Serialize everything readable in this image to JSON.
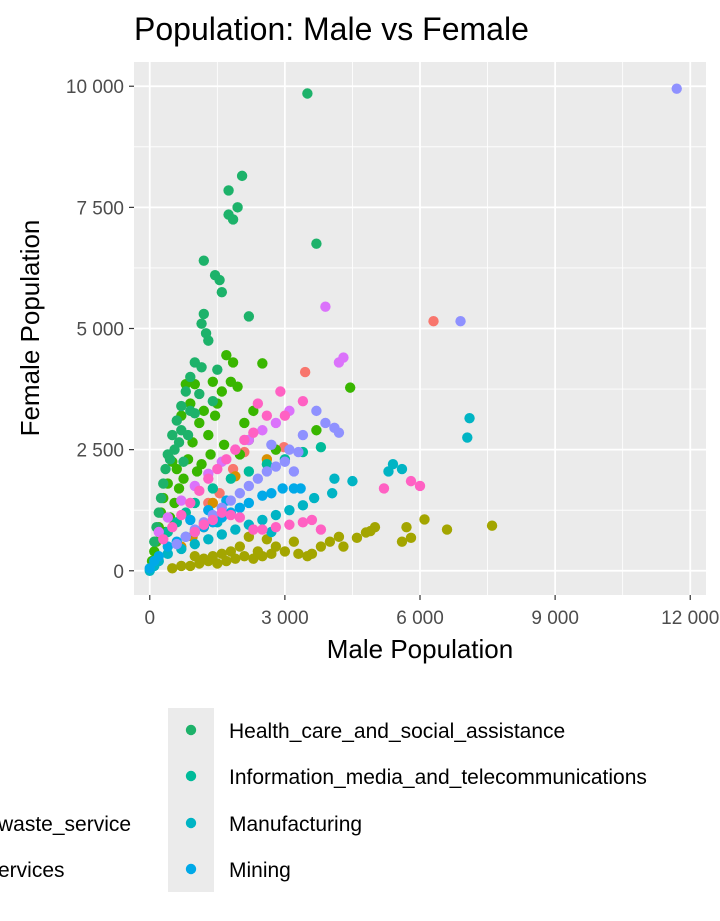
{
  "chart_data": {
    "type": "scatter",
    "title": "Population: Male vs Female",
    "xlabel": "Male Population",
    "ylabel": "Female Population",
    "xlim": [
      -350,
      12350
    ],
    "ylim": [
      -500,
      10500
    ],
    "x_ticks": [
      0,
      3000,
      6000,
      9000,
      12000
    ],
    "x_tick_labels": [
      "0",
      "3 000",
      "6 000",
      "9 000",
      "12 000"
    ],
    "y_ticks": [
      0,
      2500,
      5000,
      7500,
      10000
    ],
    "y_tick_labels": [
      "0",
      "2 500",
      "5 000",
      "7 500",
      "10 000"
    ],
    "grid": true,
    "legend": {
      "placement": "bottom",
      "cut_off_labels": [
        "waste_service",
        "ervices"
      ],
      "entries": [
        {
          "label": "Health_care_and_social_assistance",
          "color": "#1DB26A"
        },
        {
          "label": "Information_media_and_telecommunications",
          "color": "#00BB9A"
        },
        {
          "label": "Manufacturing",
          "color": "#00B4C4"
        },
        {
          "label": "Mining",
          "color": "#00A9E8"
        }
      ]
    },
    "series": [
      {
        "color": "#F8766D",
        "points": [
          [
            6300,
            5150
          ],
          [
            3450,
            4100
          ],
          [
            2980,
            2550
          ],
          [
            1850,
            2100
          ],
          [
            1550,
            1600
          ],
          [
            1300,
            1400
          ],
          [
            2100,
            2450
          ]
        ]
      },
      {
        "color": "#D89000",
        "points": [
          [
            2600,
            2300
          ],
          [
            1900,
            1950
          ],
          [
            1400,
            1400
          ],
          [
            1200,
            900
          ],
          [
            950,
            700
          ],
          [
            700,
            500
          ]
        ]
      },
      {
        "color": "#A3A500",
        "points": [
          [
            7600,
            930
          ],
          [
            6600,
            850
          ],
          [
            6100,
            1060
          ],
          [
            5700,
            900
          ],
          [
            5600,
            600
          ],
          [
            5800,
            680
          ],
          [
            5000,
            900
          ],
          [
            4800,
            790
          ],
          [
            4600,
            680
          ],
          [
            4900,
            820
          ],
          [
            4200,
            700
          ],
          [
            4000,
            600
          ],
          [
            3800,
            500
          ],
          [
            3500,
            300
          ],
          [
            3300,
            350
          ],
          [
            3000,
            400
          ],
          [
            2700,
            350
          ],
          [
            2500,
            300
          ],
          [
            2300,
            250
          ],
          [
            2100,
            300
          ],
          [
            1900,
            250
          ],
          [
            1700,
            200
          ],
          [
            1500,
            150
          ],
          [
            1300,
            200
          ],
          [
            1100,
            150
          ],
          [
            900,
            100
          ],
          [
            700,
            100
          ],
          [
            500,
            50
          ],
          [
            2800,
            500
          ],
          [
            2400,
            400
          ],
          [
            2000,
            500
          ],
          [
            1800,
            400
          ],
          [
            1600,
            350
          ],
          [
            1400,
            300
          ],
          [
            1200,
            250
          ],
          [
            1000,
            300
          ],
          [
            3600,
            350
          ],
          [
            4300,
            500
          ],
          [
            3200,
            600
          ],
          [
            2200,
            700
          ],
          [
            2600,
            650
          ]
        ]
      },
      {
        "color": "#39B600",
        "points": [
          [
            4450,
            3780
          ],
          [
            3700,
            2900
          ],
          [
            2500,
            4280
          ],
          [
            2300,
            3300
          ],
          [
            2200,
            2700
          ],
          [
            2100,
            3050
          ],
          [
            1950,
            3800
          ],
          [
            1800,
            3900
          ],
          [
            1700,
            4450
          ],
          [
            1600,
            3700
          ],
          [
            1500,
            3450
          ],
          [
            1400,
            3900
          ],
          [
            1300,
            2800
          ],
          [
            1200,
            3300
          ],
          [
            1100,
            3050
          ],
          [
            1000,
            3850
          ],
          [
            900,
            3450
          ],
          [
            800,
            3850
          ],
          [
            700,
            3200
          ],
          [
            600,
            2100
          ],
          [
            500,
            2250
          ],
          [
            400,
            1800
          ],
          [
            300,
            1500
          ],
          [
            250,
            1200
          ],
          [
            200,
            900
          ],
          [
            150,
            600
          ],
          [
            100,
            400
          ],
          [
            50,
            200
          ],
          [
            1850,
            4300
          ],
          [
            1450,
            3200
          ],
          [
            1150,
            2200
          ],
          [
            950,
            2650
          ],
          [
            850,
            2300
          ],
          [
            750,
            1900
          ],
          [
            650,
            1700
          ],
          [
            550,
            1400
          ],
          [
            450,
            1100
          ],
          [
            350,
            800
          ],
          [
            1650,
            2600
          ],
          [
            1350,
            2400
          ],
          [
            1050,
            2050
          ],
          [
            2000,
            2400
          ],
          [
            2800,
            2500
          ]
        ]
      },
      {
        "color": "#1DB26A",
        "points": [
          [
            3500,
            9850
          ],
          [
            2050,
            8150
          ],
          [
            1750,
            7850
          ],
          [
            1950,
            7500
          ],
          [
            1750,
            7350
          ],
          [
            1850,
            7250
          ],
          [
            3700,
            6750
          ],
          [
            1200,
            6400
          ],
          [
            1450,
            6100
          ],
          [
            1550,
            6000
          ],
          [
            1600,
            5750
          ],
          [
            2200,
            5250
          ],
          [
            1200,
            5300
          ],
          [
            1150,
            5100
          ],
          [
            1250,
            4900
          ],
          [
            1300,
            4750
          ],
          [
            1000,
            4300
          ],
          [
            900,
            4000
          ],
          [
            800,
            3700
          ],
          [
            700,
            3400
          ],
          [
            600,
            3100
          ],
          [
            500,
            2800
          ],
          [
            400,
            2400
          ],
          [
            350,
            2100
          ],
          [
            300,
            1800
          ],
          [
            250,
            1500
          ],
          [
            200,
            1200
          ],
          [
            150,
            900
          ],
          [
            100,
            600
          ],
          [
            1500,
            4150
          ],
          [
            1150,
            4200
          ],
          [
            1100,
            3650
          ],
          [
            650,
            2650
          ],
          [
            550,
            2500
          ],
          [
            450,
            2300
          ],
          [
            900,
            3300
          ],
          [
            700,
            2900
          ],
          [
            1400,
            3500
          ],
          [
            1000,
            3250
          ],
          [
            750,
            2250
          ],
          [
            850,
            2800
          ]
        ]
      },
      {
        "color": "#00BB9A",
        "points": [
          [
            3800,
            2550
          ],
          [
            3400,
            2450
          ],
          [
            3000,
            2300
          ],
          [
            2600,
            2200
          ],
          [
            2200,
            2050
          ],
          [
            1800,
            1900
          ],
          [
            1400,
            1700
          ],
          [
            1000,
            1400
          ],
          [
            800,
            1200
          ],
          [
            600,
            1000
          ],
          [
            400,
            800
          ]
        ]
      },
      {
        "color": "#00B4C4",
        "points": [
          [
            7100,
            3150
          ],
          [
            7050,
            2750
          ],
          [
            5400,
            2200
          ],
          [
            5600,
            2100
          ],
          [
            5300,
            2050
          ],
          [
            4500,
            1850
          ],
          [
            4100,
            1900
          ],
          [
            4050,
            1600
          ],
          [
            3650,
            1500
          ],
          [
            3400,
            1350
          ],
          [
            3100,
            1250
          ],
          [
            2800,
            1150
          ],
          [
            2500,
            1050
          ],
          [
            2200,
            950
          ],
          [
            1900,
            850
          ],
          [
            1600,
            750
          ],
          [
            1300,
            650
          ],
          [
            1000,
            550
          ],
          [
            700,
            450
          ],
          [
            400,
            350
          ],
          [
            200,
            200
          ],
          [
            100,
            100
          ],
          [
            0,
            0
          ],
          [
            2700,
            800
          ],
          [
            1500,
            1000
          ]
        ]
      },
      {
        "color": "#00A9E8",
        "points": [
          [
            3200,
            1700
          ],
          [
            2950,
            1700
          ],
          [
            2700,
            1600
          ],
          [
            2500,
            1550
          ],
          [
            2200,
            1400
          ],
          [
            2000,
            1300
          ],
          [
            1800,
            1200
          ],
          [
            1600,
            1100
          ],
          [
            1400,
            1000
          ],
          [
            1200,
            900
          ],
          [
            1000,
            800
          ],
          [
            800,
            700
          ],
          [
            600,
            600
          ],
          [
            400,
            500
          ],
          [
            200,
            300
          ],
          [
            100,
            200
          ],
          [
            0,
            50
          ],
          [
            3350,
            1700
          ],
          [
            1700,
            1450
          ],
          [
            1300,
            1250
          ],
          [
            900,
            1050
          ]
        ]
      },
      {
        "color": "#8F91FF",
        "points": [
          [
            11700,
            9950
          ],
          [
            6900,
            5150
          ],
          [
            4100,
            2950
          ],
          [
            3900,
            3050
          ],
          [
            4200,
            2850
          ],
          [
            3700,
            3300
          ],
          [
            3400,
            2800
          ],
          [
            3300,
            2450
          ],
          [
            3200,
            2050
          ],
          [
            3000,
            2250
          ],
          [
            2800,
            2150
          ],
          [
            2600,
            2050
          ],
          [
            2400,
            1900
          ],
          [
            2200,
            1750
          ],
          [
            2000,
            1600
          ],
          [
            1800,
            1450
          ],
          [
            1600,
            1300
          ],
          [
            1400,
            1150
          ],
          [
            1200,
            1000
          ],
          [
            1000,
            850
          ],
          [
            800,
            700
          ],
          [
            600,
            550
          ],
          [
            2700,
            2600
          ],
          [
            3100,
            2500
          ]
        ]
      },
      {
        "color": "#DB72FB",
        "points": [
          [
            3900,
            5450
          ],
          [
            4300,
            4400
          ],
          [
            4200,
            4300
          ],
          [
            3100,
            3300
          ],
          [
            2800,
            3050
          ],
          [
            2500,
            2900
          ],
          [
            2200,
            2700
          ],
          [
            1900,
            2500
          ],
          [
            1600,
            2250
          ],
          [
            1300,
            2000
          ],
          [
            1000,
            1750
          ],
          [
            700,
            1450
          ],
          [
            400,
            1100
          ],
          [
            200,
            800
          ]
        ]
      },
      {
        "color": "#FF61C3",
        "points": [
          [
            3400,
            3500
          ],
          [
            2900,
            3700
          ],
          [
            2400,
            3450
          ],
          [
            2300,
            2850
          ],
          [
            2100,
            2700
          ],
          [
            1900,
            2500
          ],
          [
            1700,
            2300
          ],
          [
            1500,
            2100
          ],
          [
            1300,
            1900
          ],
          [
            1100,
            1650
          ],
          [
            900,
            1400
          ],
          [
            700,
            1150
          ],
          [
            500,
            900
          ],
          [
            300,
            650
          ],
          [
            6000,
            1750
          ],
          [
            5800,
            1850
          ],
          [
            5200,
            1700
          ],
          [
            3800,
            850
          ],
          [
            3600,
            1050
          ],
          [
            3400,
            1000
          ],
          [
            3100,
            950
          ],
          [
            2800,
            900
          ],
          [
            2500,
            850
          ],
          [
            2300,
            850
          ],
          [
            2000,
            1100
          ],
          [
            1800,
            1150
          ],
          [
            1600,
            1200
          ],
          [
            1400,
            1050
          ],
          [
            1200,
            950
          ],
          [
            1000,
            800
          ],
          [
            3000,
            3200
          ],
          [
            2600,
            3200
          ]
        ]
      }
    ]
  }
}
